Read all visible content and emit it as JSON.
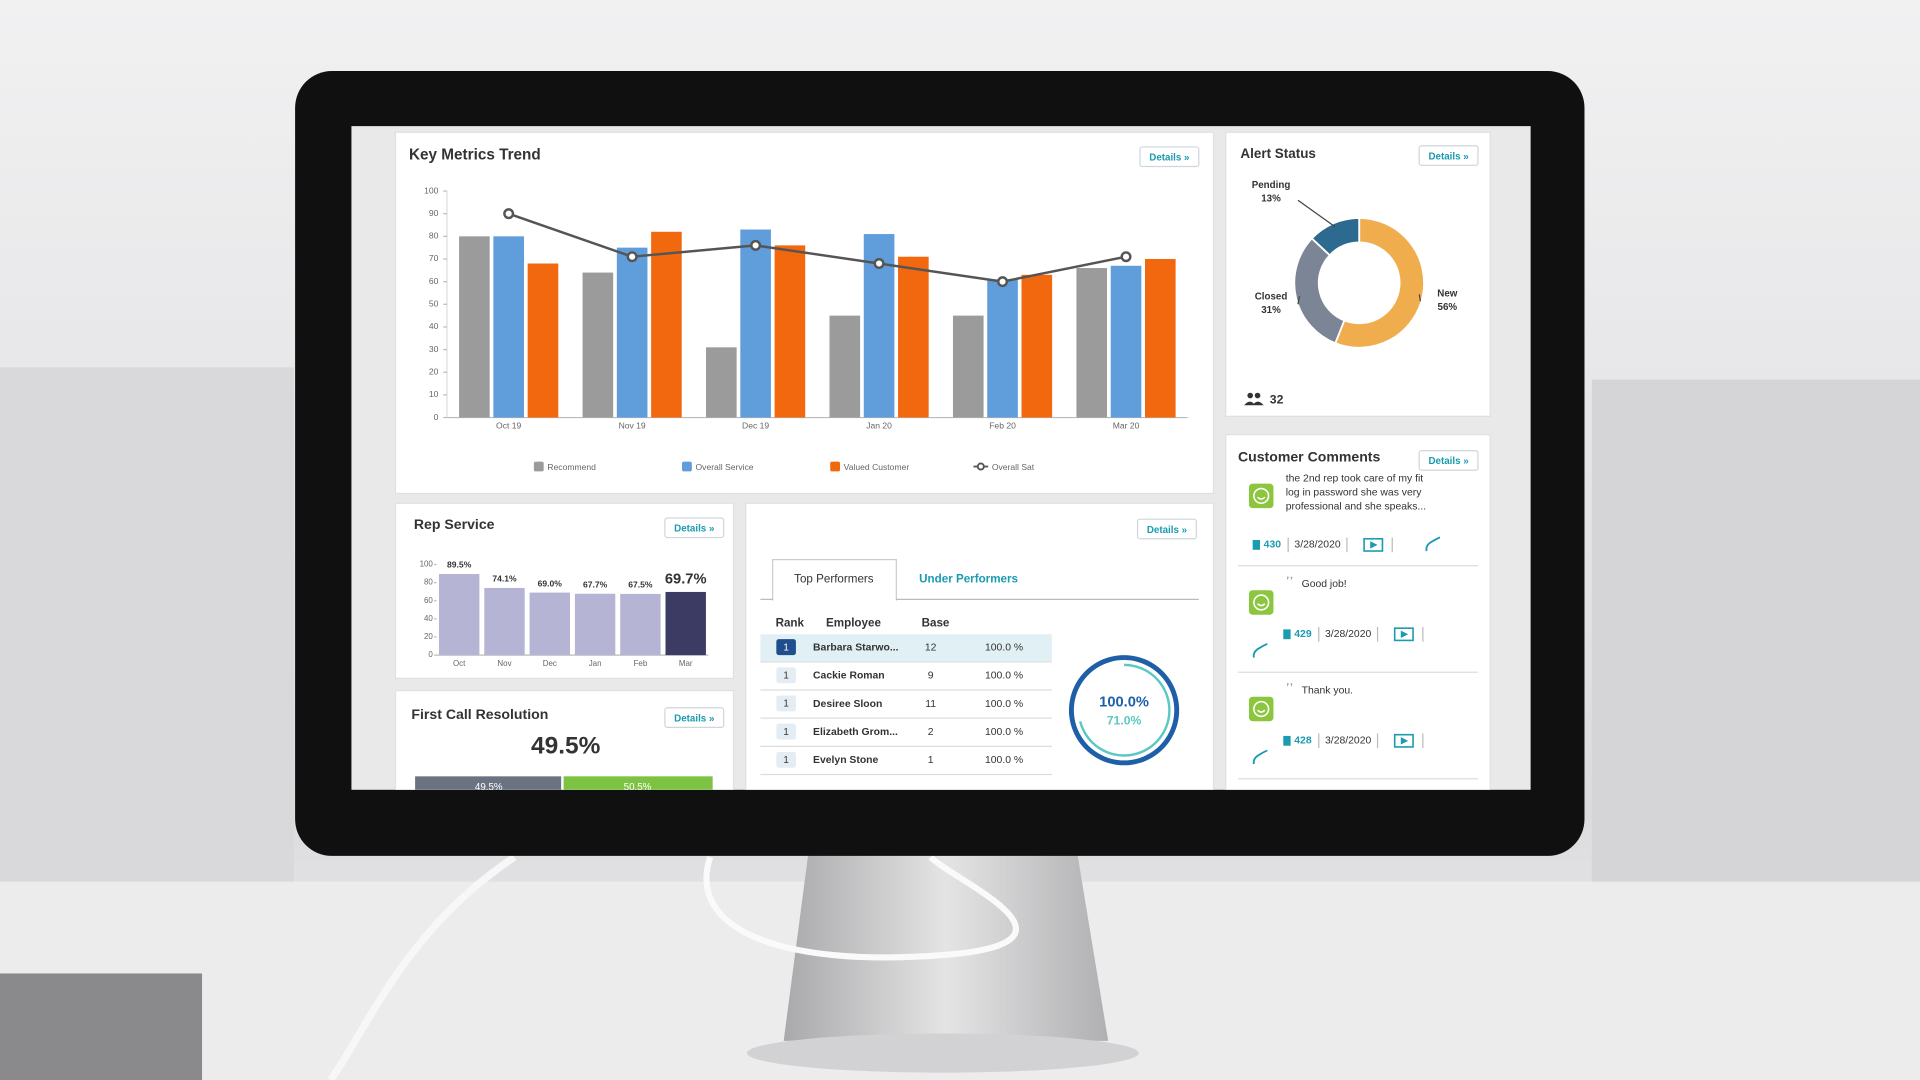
{
  "chart_data": [
    {
      "type": "bar-line",
      "title": "Key Metrics Trend",
      "categories": [
        "Oct 19",
        "Nov 19",
        "Dec 19",
        "Jan 20",
        "Feb 20",
        "Mar 20"
      ],
      "series": [
        {
          "name": "Recommend",
          "color": "#9b9b9b",
          "values": [
            80,
            64,
            31,
            45,
            45,
            66
          ]
        },
        {
          "name": "Overall Service",
          "color": "#5f9ddb",
          "values": [
            80,
            75,
            83,
            81,
            61,
            67
          ]
        },
        {
          "name": "Valued Customer",
          "color": "#f2680f",
          "values": [
            68,
            82,
            76,
            71,
            63,
            70
          ]
        },
        {
          "name": "Overall Sat",
          "type": "line",
          "color": "#555555",
          "values": [
            90,
            71,
            76,
            68,
            60,
            71
          ]
        }
      ],
      "ylim": [
        0,
        100
      ],
      "yticks": [
        0,
        10,
        20,
        30,
        40,
        50,
        60,
        70,
        80,
        90,
        100
      ]
    },
    {
      "type": "donut",
      "title": "Alert Status",
      "categories": [
        "New",
        "Closed",
        "Pending"
      ],
      "values": [
        56,
        31,
        13
      ],
      "value_labels": [
        "56%",
        "31%",
        "13%"
      ],
      "colors": [
        "#f0ad4e",
        "#7b8596",
        "#2d6a8f"
      ],
      "total": 32
    },
    {
      "type": "bar",
      "title": "Rep Service",
      "categories": [
        "Oct",
        "Nov",
        "Dec",
        "Jan",
        "Feb",
        "Mar"
      ],
      "values": [
        89.5,
        74.1,
        69.0,
        67.7,
        67.5,
        69.7
      ],
      "value_labels": [
        "89.5%",
        "74.1%",
        "69.0%",
        "67.7%",
        "67.5%",
        "69.7%"
      ],
      "colors": [
        "#b5b4d4",
        "#b5b4d4",
        "#b5b4d4",
        "#b5b4d4",
        "#b5b4d4",
        "#3b3b64"
      ],
      "ylim": [
        0,
        100
      ],
      "yticks": [
        0,
        20,
        40,
        60,
        80,
        100
      ]
    },
    {
      "type": "split-bar",
      "title": "First Call Resolution",
      "values": [
        49.5,
        50.5
      ],
      "value_labels": [
        "49.5%",
        "50.5%"
      ],
      "colors": [
        "#6b7280",
        "#7dc242"
      ],
      "xlim": [
        0,
        100
      ]
    }
  ],
  "details_label": "Details »",
  "performers": {
    "tabs": [
      "Top Performers",
      "Under Performers"
    ],
    "columns": [
      "Rank",
      "Employee",
      "Base"
    ],
    "rows": [
      [
        "1",
        "Barbara Starwo...",
        "12",
        "100.0 %"
      ],
      [
        "1",
        "Cackie Roman",
        "9",
        "100.0 %"
      ],
      [
        "1",
        "Desiree Sloon",
        "11",
        "100.0 %"
      ],
      [
        "1",
        "Elizabeth Grom...",
        "2",
        "100.0 %"
      ],
      [
        "1",
        "Evelyn Stone",
        "1",
        "100.0 %"
      ]
    ],
    "gauge": {
      "values": [
        100.0,
        71.0
      ],
      "value_labels": [
        "100.0%",
        "71.0%"
      ]
    }
  },
  "comments": {
    "title": "Customer Comments",
    "items": [
      {
        "lines": [
          "the 2nd rep took care of my fit",
          "log in password she was very",
          "professional and she speaks..."
        ],
        "id": "430",
        "date": "3/28/2020"
      },
      {
        "lines": [
          "Good job!"
        ],
        "id": "429",
        "date": "3/28/2020"
      },
      {
        "lines": [
          "Thank you."
        ],
        "id": "428",
        "date": "3/28/2020"
      }
    ]
  }
}
